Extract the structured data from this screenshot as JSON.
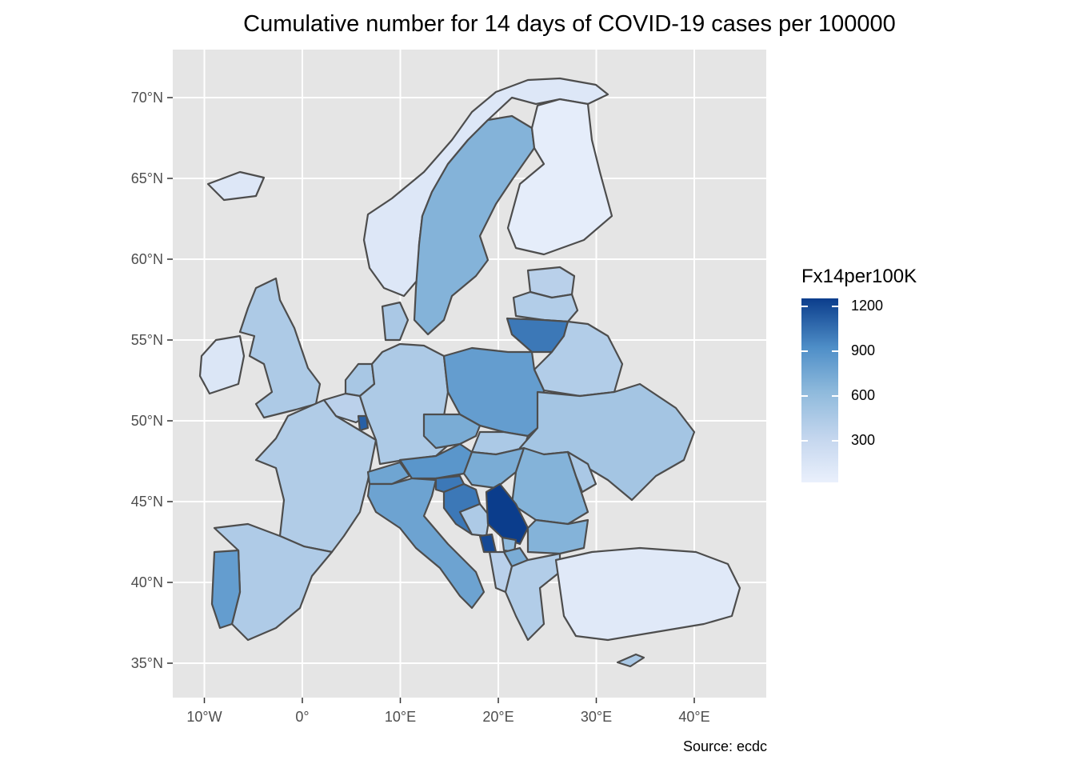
{
  "title": "Cumulative number for 14 days of COVID-19 cases per 100000",
  "caption": "Source: ecdc",
  "axes": {
    "lat_ticks": [
      "70°N",
      "65°N",
      "60°N",
      "55°N",
      "50°N",
      "45°N",
      "40°N",
      "35°N"
    ],
    "lon_ticks": [
      "10°W",
      "0°",
      "10°E",
      "20°E",
      "30°E",
      "40°E"
    ]
  },
  "legend": {
    "title": "Fx14per100K",
    "labels": [
      "1200",
      "900",
      "600",
      "300"
    ],
    "colors": {
      "low": "#eaf0fc",
      "high": "#0b3d8c"
    }
  },
  "colors": {
    "panel": "#e5e5e5",
    "grid": "#ffffff",
    "border": "#4d4d4d"
  },
  "regions": [
    {
      "name": "Norway",
      "value": 100
    },
    {
      "name": "Sweden",
      "value": 650
    },
    {
      "name": "Finland",
      "value": 40
    },
    {
      "name": "Iceland",
      "value": 100
    },
    {
      "name": "Estonia",
      "value": 360
    },
    {
      "name": "Latvia",
      "value": 400
    },
    {
      "name": "Lithuania",
      "value": 1000
    },
    {
      "name": "Belarus",
      "value": 400
    },
    {
      "name": "Ireland",
      "value": 120
    },
    {
      "name": "United Kingdom",
      "value": 430
    },
    {
      "name": "Denmark",
      "value": 450
    },
    {
      "name": "Netherlands",
      "value": 460
    },
    {
      "name": "Belgium",
      "value": 350
    },
    {
      "name": "Luxembourg",
      "value": 1100
    },
    {
      "name": "Germany",
      "value": 430
    },
    {
      "name": "Poland",
      "value": 800
    },
    {
      "name": "Czechia",
      "value": 700
    },
    {
      "name": "Slovakia",
      "value": 440
    },
    {
      "name": "Ukraine",
      "value": 480
    },
    {
      "name": "France",
      "value": 410
    },
    {
      "name": "Switzerland",
      "value": 750
    },
    {
      "name": "Austria",
      "value": 850
    },
    {
      "name": "Hungary",
      "value": 700
    },
    {
      "name": "Romania",
      "value": 650
    },
    {
      "name": "Moldova",
      "value": 450
    },
    {
      "name": "Italy",
      "value": 760
    },
    {
      "name": "Slovenia",
      "value": 1000
    },
    {
      "name": "Croatia",
      "value": 1000
    },
    {
      "name": "Bosnia and Herzegovina",
      "value": 430
    },
    {
      "name": "Serbia",
      "value": 1250
    },
    {
      "name": "Montenegro",
      "value": 1200
    },
    {
      "name": "Kosovo",
      "value": 600
    },
    {
      "name": "North Macedonia",
      "value": 700
    },
    {
      "name": "Albania",
      "value": 360
    },
    {
      "name": "Bulgaria",
      "value": 650
    },
    {
      "name": "Greece",
      "value": 400
    },
    {
      "name": "Turkey",
      "value": 80
    },
    {
      "name": "Cyprus",
      "value": 450
    },
    {
      "name": "Spain",
      "value": 420
    },
    {
      "name": "Portugal",
      "value": 800
    }
  ]
}
